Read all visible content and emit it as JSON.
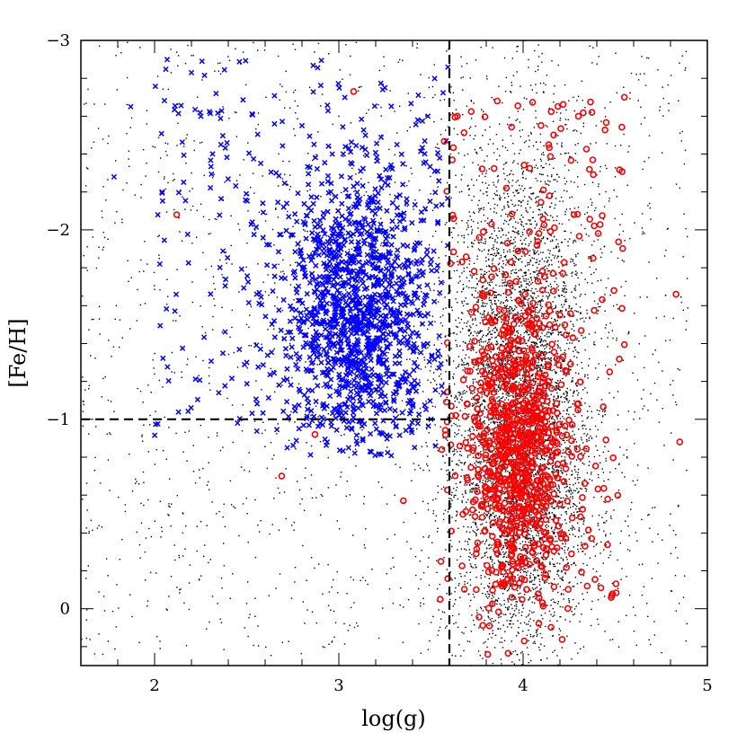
{
  "chart_data": {
    "type": "scatter",
    "title": "",
    "xlabel": "log(g)",
    "ylabel": "[Fe/H]",
    "xlim": [
      1.6,
      5.0
    ],
    "ylim": [
      0.3,
      -3.0
    ],
    "y_inverted": true,
    "x_ticks": [
      2,
      3,
      4,
      5
    ],
    "x_tick_labels": [
      "2",
      "3",
      "4",
      "5"
    ],
    "y_ticks": [
      0,
      -1,
      -2,
      -3
    ],
    "y_tick_labels": [
      "0",
      "−1",
      "−2",
      "−3"
    ],
    "grid": false,
    "legend": "none",
    "reference_lines": [
      {
        "orientation": "vertical",
        "x": 3.6,
        "y_from": 0.3,
        "y_to": -3.0,
        "style": "dashed"
      },
      {
        "orientation": "horizontal",
        "y": -1.0,
        "x_from": 1.6,
        "x_to": 3.6,
        "style": "dashed"
      }
    ],
    "colors": {
      "background_points": "#000000",
      "giants": "#0000ff",
      "dwarfs": "#ff0000",
      "reference_lines": "#000000"
    },
    "series": [
      {
        "marker": "dot",
        "color": "#000000",
        "approx_count": 9000,
        "distribution": "dense field concentrated at log(g) 3.6–4.3 and [Fe/H] -2.5 to 0.2, with a sparse scatter across the whole plane",
        "x": [
          3.7,
          3.8,
          3.9,
          4.0,
          4.1,
          4.2,
          3.8,
          4.0,
          4.2,
          3.9,
          2.2,
          2.5,
          3.0,
          4.6,
          4.8
        ],
        "y": [
          -2.4,
          -2.0,
          -1.6,
          -1.2,
          -0.8,
          -0.4,
          -2.2,
          -1.9,
          -1.5,
          -0.2,
          -2.3,
          -1.5,
          -2.6,
          -1.0,
          -0.5
        ]
      },
      {
        "marker": "cross",
        "color": "#0000ff",
        "approx_count": 1500,
        "distribution": "log(g) 1.8–3.6 and [Fe/H] -2.9 to -0.8, centred near log(g) 3.1, [Fe/H] -1.5",
        "x": [
          1.78,
          1.87,
          2.04,
          2.2,
          2.36,
          2.5,
          2.66,
          2.8,
          2.92,
          3.0,
          3.06,
          3.12,
          3.2,
          3.3,
          3.38,
          3.46,
          3.5,
          2.45,
          2.72,
          3.25
        ],
        "y": [
          -2.28,
          -2.65,
          -2.2,
          -2.83,
          -2.45,
          -1.3,
          -2.3,
          -2.55,
          -1.9,
          -1.6,
          -1.3,
          -1.5,
          -1.75,
          -1.45,
          -1.15,
          -2.05,
          -1.0,
          -0.98,
          -0.85,
          -2.75
        ]
      },
      {
        "marker": "open-circle",
        "color": "#ff0000",
        "approx_count": 850,
        "distribution": "log(g) 3.5–4.6 and [Fe/H] -2.7 to 0, concentrated near log(g) 3.9–4.1, [Fe/H] -1.0 to -0.5",
        "x": [
          2.12,
          2.69,
          2.87,
          3.08,
          3.35,
          3.55,
          3.74,
          3.86,
          3.95,
          4.05,
          4.12,
          4.2,
          4.3,
          4.38,
          4.47,
          4.55,
          4.83,
          4.85,
          3.99,
          4.14
        ],
        "y": [
          -2.08,
          -0.7,
          -0.92,
          -2.73,
          -0.57,
          -0.05,
          -1.3,
          -2.68,
          -0.7,
          -0.3,
          -0.95,
          -1.55,
          -2.6,
          -1.85,
          -1.25,
          -2.7,
          -1.66,
          -0.88,
          -0.85,
          -1.2
        ]
      }
    ]
  }
}
